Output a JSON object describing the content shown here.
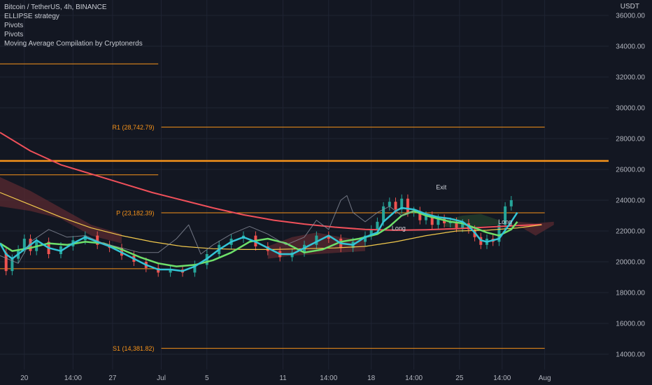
{
  "legend": {
    "symbol": "Bitcoin / TetherUS, 4h, BINANCE",
    "indicators": [
      "ELLIPSE strategy",
      "Pivots",
      "Pivots",
      "Moving Average Compilation by Cryptonerds"
    ]
  },
  "axis_unit": "USDT",
  "colors": {
    "background": "#131722",
    "grid": "#1f2433",
    "pivot": "#f7931a",
    "ma200": "#f0505a",
    "ma_fast": "#33c5d6",
    "ma_mid": "#6ee06a",
    "ma_slow": "#f2c94c",
    "price_line": "#8a8f9c",
    "candle_up": "#26a69a",
    "candle_down": "#ef5350",
    "cloud_bear": "#5a2a30",
    "cloud_bull": "#23402c"
  },
  "chart_data": {
    "type": "line",
    "y_axis": {
      "range": [
        13000,
        37000
      ],
      "ticks": [
        "14000.00",
        "16000.00",
        "18000.00",
        "20000.00",
        "22000.00",
        "24000.00",
        "26000.00",
        "28000.00",
        "30000.00",
        "32000.00",
        "34000.00",
        "36000.00"
      ],
      "tick_values": [
        14000,
        16000,
        18000,
        20000,
        22000,
        24000,
        26000,
        28000,
        30000,
        32000,
        34000,
        36000
      ]
    },
    "x_axis": {
      "range": [
        0,
        100
      ],
      "ticks": [
        "20",
        "14:00",
        "27",
        "Jul",
        "5",
        "11",
        "14:00",
        "18",
        "14:00",
        "25",
        "14:00",
        "Aug"
      ],
      "tick_positions": [
        4,
        12,
        18.5,
        26.5,
        34,
        46.5,
        54,
        61,
        68,
        75.5,
        82.5,
        89.5
      ]
    },
    "pivot_levels": [
      {
        "label": "R1 (28,742.79)",
        "value": 28742.79,
        "x_range": [
          26.5,
          89.5
        ]
      },
      {
        "label": "P (23,182.39)",
        "value": 23182.39,
        "x_range": [
          26.5,
          89.5
        ]
      },
      {
        "label": "S1 (14,381.82)",
        "value": 14381.82,
        "x_range": [
          26.5,
          89.5
        ]
      },
      {
        "label": "",
        "value": 32850,
        "x_range": [
          0,
          26
        ]
      },
      {
        "label": "",
        "value": 25650,
        "x_range": [
          0,
          26
        ]
      },
      {
        "label": "",
        "value": 19550,
        "x_range": [
          0,
          26
        ]
      },
      {
        "label": "",
        "value": 26550,
        "x_range": [
          0,
          100
        ]
      }
    ],
    "annotations": [
      {
        "text": "Long",
        "x": 65.5,
        "y": 22050
      },
      {
        "text": "Exit",
        "x": 72.5,
        "y": 24700
      },
      {
        "text": "Long",
        "x": 83,
        "y": 22450
      }
    ],
    "series": [
      {
        "role": "ma200",
        "x": [
          0,
          5,
          10,
          15,
          20,
          25,
          30,
          35,
          40,
          45,
          50,
          55,
          60,
          65,
          70,
          75,
          80,
          85,
          89
        ],
        "values": [
          28400,
          27200,
          26300,
          25700,
          25100,
          24500,
          24000,
          23500,
          23050,
          22700,
          22450,
          22250,
          22100,
          22050,
          22080,
          22150,
          22250,
          22350,
          22420
        ]
      },
      {
        "role": "ma_slow",
        "x": [
          0,
          5,
          10,
          15,
          20,
          25,
          30,
          35,
          40,
          45,
          50,
          55,
          60,
          65,
          70,
          75,
          80,
          85,
          89
        ],
        "values": [
          24500,
          23700,
          22900,
          22200,
          21700,
          21300,
          21000,
          20850,
          20800,
          20800,
          20850,
          20900,
          21000,
          21300,
          21700,
          22000,
          22050,
          22200,
          22400
        ]
      },
      {
        "role": "ma_mid",
        "x": [
          0,
          2,
          5,
          8,
          11,
          14,
          17,
          20,
          23,
          26,
          29,
          32,
          35,
          38,
          41,
          44,
          47,
          50,
          53,
          56,
          59,
          62,
          64,
          66,
          68,
          70,
          72,
          74,
          76,
          78,
          80,
          82,
          84,
          85
        ],
        "values": [
          21200,
          20700,
          20900,
          21200,
          21100,
          21300,
          21200,
          20800,
          20300,
          19900,
          19700,
          19800,
          20100,
          20600,
          21300,
          21500,
          21200,
          20600,
          20800,
          21300,
          21500,
          21800,
          22300,
          23000,
          23300,
          23000,
          22800,
          22600,
          22500,
          22200,
          21900,
          21700,
          22100,
          22600
        ]
      },
      {
        "role": "ma_fast",
        "x": [
          0,
          1,
          2,
          4,
          6,
          8,
          10,
          12,
          14,
          16,
          18,
          20,
          22,
          24,
          26,
          28,
          30,
          32,
          34,
          36,
          38,
          40,
          42,
          44,
          46,
          48,
          50,
          52,
          54,
          56,
          58,
          60,
          62,
          63,
          65,
          66,
          68,
          70,
          72,
          74,
          76,
          77,
          78,
          79,
          80,
          82,
          84,
          85
        ],
        "values": [
          21200,
          20500,
          20200,
          20800,
          21400,
          20900,
          20700,
          21200,
          21600,
          21300,
          21000,
          20600,
          20200,
          19800,
          19500,
          19500,
          19400,
          19700,
          20200,
          20800,
          21300,
          21600,
          21300,
          20900,
          20500,
          20500,
          20900,
          21300,
          21700,
          21200,
          21100,
          21600,
          21900,
          22600,
          23300,
          23500,
          23400,
          23100,
          22900,
          22800,
          22600,
          22300,
          21900,
          21400,
          21300,
          21500,
          22600,
          23200
        ]
      },
      {
        "role": "price_line",
        "x": [
          0,
          3,
          5,
          8,
          11,
          14,
          17,
          20,
          23,
          26,
          29,
          31,
          33,
          35,
          38,
          41,
          44,
          47,
          50,
          52,
          54,
          56,
          57,
          58,
          60,
          62,
          64,
          66,
          68
        ],
        "values": [
          20400,
          19900,
          21300,
          22100,
          21600,
          21700,
          21200,
          20900,
          20600,
          20600,
          21500,
          22400,
          20500,
          21100,
          21800,
          22300,
          21800,
          21100,
          21600,
          22700,
          22100,
          24000,
          24300,
          23200,
          22600,
          23200,
          23600,
          23000,
          23300
        ]
      },
      {
        "role": "close",
        "x": [
          0,
          1,
          2,
          3,
          4,
          5,
          6,
          8,
          10,
          12,
          14,
          16,
          18,
          20,
          22,
          24,
          26,
          28,
          30,
          32,
          34,
          36,
          38,
          40,
          42,
          44,
          46,
          48,
          50,
          52,
          54,
          56,
          58,
          60,
          61,
          62,
          63,
          64,
          65,
          66,
          67,
          68,
          69,
          70,
          71,
          72,
          73,
          74,
          75,
          76,
          77,
          78,
          79,
          80,
          81,
          82,
          83,
          84
        ],
        "values": [
          20600,
          19400,
          20200,
          20800,
          21500,
          20700,
          21300,
          20500,
          21000,
          21400,
          21700,
          21100,
          20900,
          20400,
          20000,
          19600,
          19300,
          19500,
          19300,
          19800,
          20500,
          21100,
          21500,
          21700,
          21000,
          20700,
          20300,
          20600,
          21100,
          21700,
          21500,
          20900,
          21300,
          21700,
          22100,
          22600,
          23600,
          23900,
          23400,
          24100,
          23200,
          23300,
          22700,
          23000,
          22400,
          22800,
          22500,
          22600,
          22200,
          22500,
          22100,
          21600,
          21100,
          21500,
          21300,
          22400,
          23600,
          24000
        ]
      }
    ],
    "cloud": [
      {
        "x": [
          0,
          5,
          10,
          15,
          20
        ],
        "upper": [
          25500,
          24600,
          23500,
          22400,
          21800
        ],
        "lower": [
          23600,
          23300,
          22800,
          21700,
          21200
        ],
        "kind": "bear"
      },
      {
        "x": [
          44,
          48,
          52,
          56,
          60
        ],
        "upper": [
          21000,
          21600,
          21900,
          21600,
          21400
        ],
        "lower": [
          20200,
          20400,
          20500,
          20600,
          20700
        ],
        "kind": "bear"
      },
      {
        "x": [
          73,
          76,
          79,
          82
        ],
        "upper": [
          22700,
          23000,
          23100,
          22700
        ],
        "lower": [
          22300,
          22100,
          22300,
          22400
        ],
        "kind": "bull"
      },
      {
        "x": [
          85,
          88,
          91
        ],
        "upper": [
          22600,
          22500,
          22600
        ],
        "lower": [
          22400,
          21700,
          22400
        ],
        "kind": "bear"
      }
    ]
  }
}
